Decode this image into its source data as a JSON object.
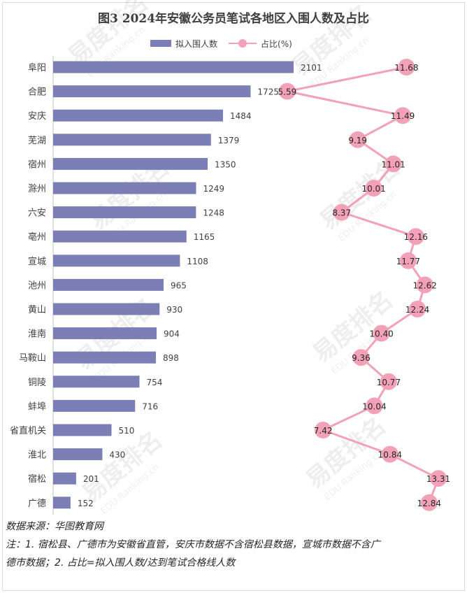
{
  "title": "图3  2024年安徽公务员笔试各地区入围人数及占比",
  "watermark": {
    "brand": "易度排名",
    "sub": "EDU Ranking.cn"
  },
  "colors": {
    "bar": "#7b7fb5",
    "line": "#f2a1b8",
    "marker": "#f2a1b8",
    "text": "#404040"
  },
  "chart_data": {
    "type": "bar",
    "orientation": "horizontal",
    "categories": [
      "阜阳",
      "合肥",
      "安庆",
      "芜湖",
      "宿州",
      "滁州",
      "六安",
      "亳州",
      "宣城",
      "池州",
      "黄山",
      "淮南",
      "马鞍山",
      "铜陵",
      "蚌埠",
      "省直机关",
      "淮北",
      "宿松",
      "广德"
    ],
    "series": [
      {
        "name": "拟入围人数",
        "type": "bar",
        "values": [
          2101,
          1725,
          1484,
          1379,
          1350,
          1249,
          1248,
          1165,
          1108,
          965,
          930,
          904,
          898,
          754,
          716,
          510,
          430,
          201,
          152
        ]
      },
      {
        "name": "占比(%)",
        "type": "line",
        "values": [
          11.68,
          5.59,
          11.49,
          9.19,
          11.01,
          10.01,
          8.37,
          12.16,
          11.77,
          12.62,
          12.24,
          10.4,
          9.36,
          10.77,
          10.04,
          7.42,
          10.84,
          13.31,
          12.84
        ],
        "labels": [
          "11.68",
          "5.59",
          "11.49",
          "9.19",
          "11.01",
          "10.01",
          "8.37",
          "12.16",
          "11.77",
          "12.62",
          "12.24",
          "10.40",
          "9.36",
          "10.77",
          "10.04",
          "7.42",
          "10.84",
          "13.31",
          "12.84"
        ]
      }
    ],
    "bar_range": [
      0,
      2200
    ],
    "pct_range": [
      5.2,
      13.4
    ],
    "legend_position": "top-center",
    "grid": false
  },
  "footer": {
    "source": "数据来源：华图教育网",
    "note_line1": "注：1. 宿松县、广德市为安徽省直管，安庆市数据不含宿松县数据，宣城市数据不含广",
    "note_line2": "德市数据；2. 占比=拟入围人数/达到笔试合格线人数"
  }
}
